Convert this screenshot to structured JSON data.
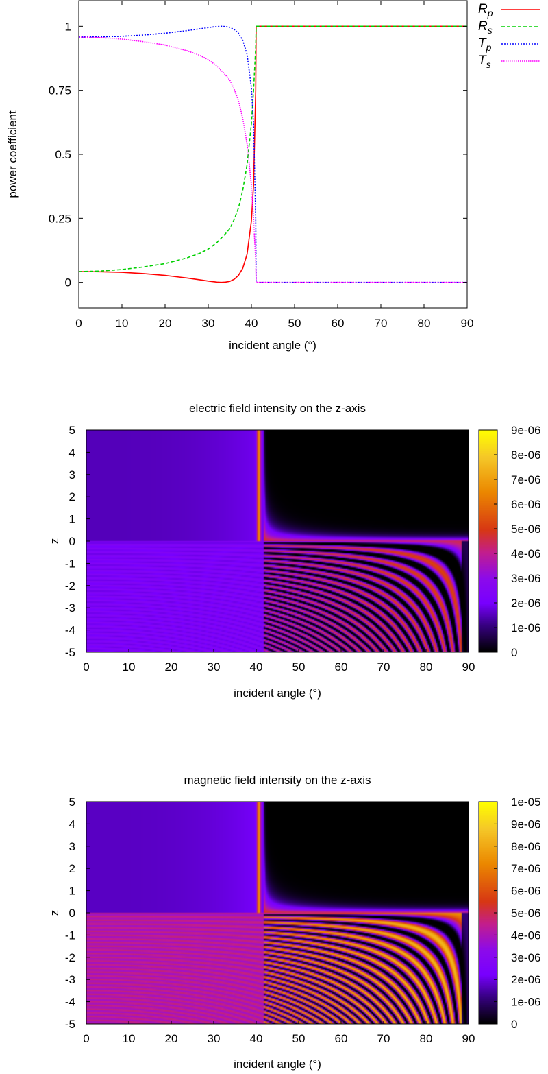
{
  "chart_data": [
    {
      "type": "line",
      "title": "",
      "xlabel": "incident angle (°)",
      "ylabel": "power coefficient",
      "xlim": [
        0,
        90
      ],
      "ylim": [
        -0.1,
        1.1
      ],
      "x_ticks": [
        "0",
        "10",
        "20",
        "30",
        "40",
        "50",
        "60",
        "70",
        "80",
        "90"
      ],
      "y_ticks": [
        "0",
        "0.25",
        "0.5",
        "0.75",
        "1"
      ],
      "grid": false,
      "legend": "top-right, outside",
      "critical_angle_deg": 41.1,
      "series": [
        {
          "name": "R",
          "sub": "p",
          "color": "#ff0000",
          "dash": "solid",
          "points": [
            [
              0,
              0.042
            ],
            [
              5,
              0.041
            ],
            [
              10,
              0.039
            ],
            [
              15,
              0.034
            ],
            [
              20,
              0.027
            ],
            [
              25,
              0.017
            ],
            [
              28,
              0.01
            ],
            [
              30,
              0.005
            ],
            [
              32,
              0.001
            ],
            [
              33,
              0.0
            ],
            [
              34,
              0.001
            ],
            [
              35,
              0.004
            ],
            [
              36,
              0.012
            ],
            [
              37,
              0.027
            ],
            [
              38,
              0.055
            ],
            [
              39,
              0.11
            ],
            [
              40,
              0.24
            ],
            [
              40.5,
              0.38
            ],
            [
              41,
              0.75
            ],
            [
              41.1,
              1.0
            ],
            [
              90,
              1.0
            ]
          ]
        },
        {
          "name": "R",
          "sub": "s",
          "color": "#00d000",
          "dash": "5,3",
          "points": [
            [
              0,
              0.042
            ],
            [
              5,
              0.044
            ],
            [
              10,
              0.05
            ],
            [
              15,
              0.06
            ],
            [
              20,
              0.073
            ],
            [
              25,
              0.095
            ],
            [
              28,
              0.113
            ],
            [
              30,
              0.13
            ],
            [
              32,
              0.155
            ],
            [
              34,
              0.19
            ],
            [
              35,
              0.21
            ],
            [
              36,
              0.245
            ],
            [
              37,
              0.29
            ],
            [
              38,
              0.36
            ],
            [
              39,
              0.46
            ],
            [
              40,
              0.62
            ],
            [
              40.5,
              0.75
            ],
            [
              41,
              0.92
            ],
            [
              41.1,
              1.0
            ],
            [
              90,
              1.0
            ]
          ]
        },
        {
          "name": "T",
          "sub": "p",
          "color": "#0000ff",
          "dash": "2,2",
          "points": [
            [
              0,
              0.958
            ],
            [
              5,
              0.959
            ],
            [
              10,
              0.961
            ],
            [
              15,
              0.966
            ],
            [
              20,
              0.973
            ],
            [
              25,
              0.983
            ],
            [
              28,
              0.99
            ],
            [
              30,
              0.995
            ],
            [
              32,
              0.999
            ],
            [
              33,
              1.0
            ],
            [
              34,
              0.999
            ],
            [
              35,
              0.996
            ],
            [
              36,
              0.988
            ],
            [
              37,
              0.973
            ],
            [
              38,
              0.945
            ],
            [
              39,
              0.89
            ],
            [
              40,
              0.76
            ],
            [
              40.5,
              0.62
            ],
            [
              41,
              0.25
            ],
            [
              41.1,
              0.0
            ],
            [
              90,
              0.0
            ]
          ]
        },
        {
          "name": "T",
          "sub": "s",
          "color": "#ff00ff",
          "dash": "1.5,1.5",
          "points": [
            [
              0,
              0.958
            ],
            [
              5,
              0.956
            ],
            [
              10,
              0.95
            ],
            [
              15,
              0.94
            ],
            [
              20,
              0.927
            ],
            [
              25,
              0.905
            ],
            [
              28,
              0.887
            ],
            [
              30,
              0.87
            ],
            [
              32,
              0.845
            ],
            [
              34,
              0.81
            ],
            [
              35,
              0.79
            ],
            [
              36,
              0.755
            ],
            [
              37,
              0.71
            ],
            [
              38,
              0.64
            ],
            [
              39,
              0.54
            ],
            [
              40,
              0.38
            ],
            [
              40.5,
              0.25
            ],
            [
              41,
              0.08
            ],
            [
              41.1,
              0.0
            ],
            [
              90,
              0.0
            ]
          ]
        }
      ]
    },
    {
      "type": "heatmap",
      "title": "electric field intensity on the z-axis",
      "xlabel": "incident angle (°)",
      "ylabel": "z",
      "xlim": [
        0,
        90
      ],
      "ylim": [
        -5,
        5
      ],
      "x_ticks": [
        "0",
        "10",
        "20",
        "30",
        "40",
        "50",
        "60",
        "70",
        "80",
        "90"
      ],
      "y_ticks": [
        "5",
        "4",
        "3",
        "2",
        "1",
        "0",
        "-1",
        "-2",
        "-3",
        "-4",
        "-5"
      ],
      "colorbar_range": [
        0,
        9e-06
      ],
      "colorbar_ticks": [
        "9e-06",
        "8e-06",
        "7e-06",
        "6e-06",
        "5e-06",
        "4e-06",
        "3e-06",
        "2e-06",
        "1e-06",
        "0"
      ],
      "colormap": "black-blue-violet-red-orange-yellow",
      "upper_intensity": 1.9e-06,
      "lower_mean": 2.2e-06,
      "lower_fringe_amplitude": 3.2e-06,
      "max_intensity": 9e-06
    },
    {
      "type": "heatmap",
      "title": "magnetic field intensity on the z-axis",
      "xlabel": "incident angle (°)",
      "ylabel": "z",
      "xlim": [
        0,
        90
      ],
      "ylim": [
        -5,
        5
      ],
      "x_ticks": [
        "0",
        "10",
        "20",
        "30",
        "40",
        "50",
        "60",
        "70",
        "80",
        "90"
      ],
      "y_ticks": [
        "5",
        "4",
        "3",
        "2",
        "1",
        "0",
        "-1",
        "-2",
        "-3",
        "-4",
        "-5"
      ],
      "colorbar_range": [
        0,
        1e-05
      ],
      "colorbar_ticks": [
        "1e-05",
        "9e-06",
        "8e-06",
        "7e-06",
        "6e-06",
        "5e-06",
        "4e-06",
        "3e-06",
        "2e-06",
        "1e-06",
        "0"
      ],
      "colormap": "black-blue-violet-red-orange-yellow",
      "upper_intensity": 2.2e-06,
      "lower_mean": 4.2e-06,
      "lower_fringe_amplitude": 4.6e-06,
      "max_intensity": 1e-05
    }
  ]
}
